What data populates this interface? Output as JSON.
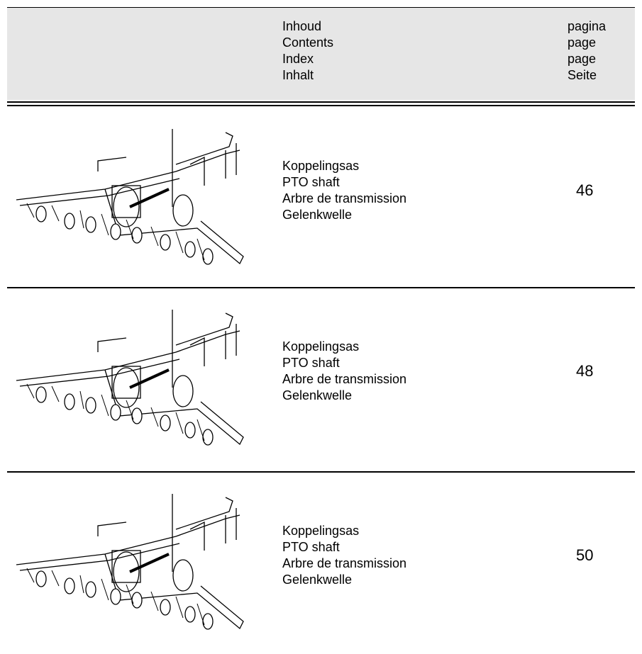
{
  "header": {
    "labels": [
      "Inhoud",
      "Contents",
      "Index",
      "Inhalt"
    ],
    "page_labels": [
      "pagina",
      "page",
      "page",
      "Seite"
    ]
  },
  "rows": [
    {
      "lines": [
        "Koppelingsas",
        "PTO shaft",
        "Arbre de transmission",
        "Gelenkwelle"
      ],
      "page": 46
    },
    {
      "lines": [
        "Koppelingsas",
        "PTO shaft",
        "Arbre de transmission",
        "Gelenkwelle"
      ],
      "page": 48
    },
    {
      "lines": [
        "Koppelingsas",
        "PTO shaft",
        "Arbre de transmission",
        "Gelenkwelle"
      ],
      "page": 50
    }
  ]
}
